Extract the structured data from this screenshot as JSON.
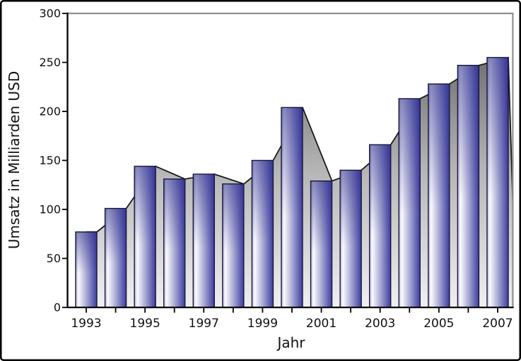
{
  "figure": {
    "background": "#ffffff",
    "frame_color": "#000000"
  },
  "chart_data": {
    "type": "bar",
    "title": "",
    "xlabel": "Jahr",
    "ylabel": "Umsatz in Milliarden USD",
    "categories": [
      1993,
      1994,
      1995,
      1996,
      1997,
      1998,
      1999,
      2000,
      2001,
      2002,
      2003,
      2004,
      2005,
      2006,
      2007
    ],
    "values": [
      77,
      101,
      144,
      131,
      136,
      126,
      150,
      204,
      129,
      140,
      166,
      213,
      228,
      247,
      255
    ],
    "ylim": [
      0,
      300
    ],
    "yticks": [
      0,
      50,
      100,
      150,
      200,
      250,
      300
    ],
    "xticks_labeled": [
      1993,
      1995,
      1997,
      1999,
      2001,
      2003,
      2005,
      2007
    ],
    "grid": false,
    "legend": false,
    "background_area": {
      "description": "gray shadow area behind the bars tracing the bar tops, offset half a bar width to the right, descending to the baseline after the last bar",
      "follows_values": true
    },
    "colors": {
      "bar_edge_dark": "#3d3da0",
      "bar_body_light": "#fbfbfe",
      "bar_left_rim": "#b4b4d8",
      "bar_outline": "#17173c",
      "bar_top_shade": "#2d2d8c",
      "area_top": "#6f6f6f",
      "area_mid": "#b5b5b5",
      "area_bottom": "#f0f0f0",
      "area_line": "#1a1a1a",
      "axis_color": "#000000",
      "spine_gray": "#909090",
      "text_color": "#111111"
    }
  }
}
